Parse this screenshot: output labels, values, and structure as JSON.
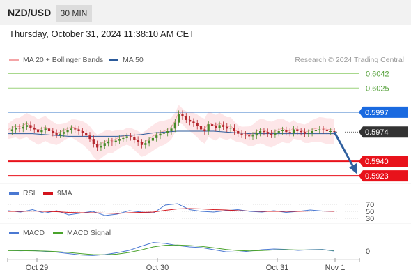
{
  "header": {
    "pair": "NZD/USD",
    "timeframe": "30 MIN",
    "timestamp": "Thursday, October 31, 2024 11:38:10 AM CET"
  },
  "legend": {
    "ma_bb": "MA 20 + Bollinger Bands",
    "ma50": "MA 50",
    "credit": "Research © 2024 Trading Central",
    "rsi": "RSI",
    "rsi_ma": "9MA",
    "macd": "MACD",
    "macd_signal": "MACD Signal"
  },
  "colors": {
    "ma20": "#f08080",
    "ma50": "#2b5a9a",
    "bb_fill": "#fde2e4",
    "candle_up": "#4a8a2a",
    "candle_down": "#b3262d",
    "resistance_green": "#9bd27b",
    "pivot_blue": "#3a78c9",
    "support_red": "#e8121b",
    "arrow": "#2f5f9e",
    "rsi": "#4a78d2",
    "rsi_ma": "#d3141c",
    "macd": "#4a78d2",
    "macd_signal": "#4aa32c"
  },
  "chart_data": [
    {
      "type": "candlestick",
      "title": "NZD/USD 30 MIN",
      "x_tick_labels": [
        "Oct 29",
        "Oct 30",
        "Oct 31",
        "Nov 1"
      ],
      "ylim": [
        0.5915,
        0.6052
      ],
      "key_levels": [
        {
          "label": "0.6042",
          "value": 0.6042,
          "kind": "resistance"
        },
        {
          "label": "0.6025",
          "value": 0.6025,
          "kind": "resistance"
        },
        {
          "label": "0.5997",
          "value": 0.5997,
          "kind": "pivot"
        },
        {
          "label": "0.5974",
          "value": 0.5974,
          "kind": "last_price"
        },
        {
          "label": "0.5940",
          "value": 0.594,
          "kind": "support"
        },
        {
          "label": "0.5923",
          "value": 0.5923,
          "kind": "support"
        }
      ],
      "close_series": [
        0.5975,
        0.5977,
        0.5979,
        0.5978,
        0.598,
        0.5982,
        0.5979,
        0.5977,
        0.5974,
        0.5976,
        0.5978,
        0.5975,
        0.5973,
        0.5971,
        0.5972,
        0.5974,
        0.5976,
        0.5978,
        0.5977,
        0.5975,
        0.5973,
        0.597,
        0.5966,
        0.596,
        0.5956,
        0.5958,
        0.5961,
        0.5963,
        0.5962,
        0.5964,
        0.5966,
        0.5967,
        0.5969,
        0.5968,
        0.5965,
        0.5962,
        0.5959,
        0.5961,
        0.5964,
        0.5967,
        0.597,
        0.5972,
        0.5973,
        0.5975,
        0.5978,
        0.5985,
        0.5995,
        0.5992,
        0.5988,
        0.5986,
        0.5984,
        0.5981,
        0.5977,
        0.5975,
        0.5983,
        0.5981,
        0.5979,
        0.5982,
        0.598,
        0.5978,
        0.5979,
        0.5975,
        0.5972,
        0.5971,
        0.597,
        0.5969,
        0.597,
        0.5973,
        0.5975,
        0.5974,
        0.5972,
        0.5971,
        0.5973,
        0.5975,
        0.5976,
        0.5974,
        0.5973,
        0.5977,
        0.5975,
        0.5974,
        0.5972,
        0.5973,
        0.5975,
        0.5976,
        0.5977,
        0.5976,
        0.5975,
        0.5975,
        0.5974
      ],
      "ma50": [
        0.5972,
        0.5972,
        0.5972,
        0.5971,
        0.597,
        0.5969,
        0.5969,
        0.5969,
        0.5969,
        0.5969,
        0.597,
        0.5971,
        0.5973,
        0.5974,
        0.5975,
        0.5975,
        0.5975,
        0.5975,
        0.5974,
        0.5973,
        0.5972,
        0.5972,
        0.5972,
        0.5972,
        0.5972,
        0.5972,
        0.5972,
        0.5972
      ]
    },
    {
      "type": "line",
      "name": "RSI",
      "ylim": [
        20,
        80
      ],
      "y_tick_labels": [
        "70",
        "50",
        "30"
      ],
      "series": [
        {
          "name": "RSI",
          "values": [
            52,
            48,
            55,
            45,
            52,
            40,
            45,
            50,
            38,
            42,
            52,
            48,
            45,
            68,
            72,
            55,
            50,
            48,
            52,
            55,
            50,
            48,
            52,
            47,
            50,
            54,
            51,
            50
          ]
        },
        {
          "name": "9MA",
          "values": [
            50,
            50,
            51,
            50,
            49,
            47,
            46,
            46,
            45,
            44,
            46,
            47,
            48,
            53,
            57,
            58,
            57,
            55,
            54,
            52,
            51,
            50,
            50,
            50,
            50,
            51,
            51,
            50
          ]
        }
      ]
    },
    {
      "type": "line",
      "name": "MACD",
      "ylim": [
        -1,
        1
      ],
      "y_tick_labels": [
        "0"
      ],
      "series": [
        {
          "name": "MACD",
          "values": [
            0.05,
            0.02,
            0.04,
            -0.02,
            -0.08,
            -0.18,
            -0.28,
            -0.32,
            -0.25,
            -0.12,
            0.05,
            0.35,
            0.62,
            0.55,
            0.4,
            0.3,
            0.25,
            0.1,
            -0.05,
            -0.08,
            0.0,
            0.1,
            0.15,
            0.12,
            0.05,
            0.1,
            0.12,
            0.0
          ]
        },
        {
          "name": "MACD Signal",
          "values": [
            0.03,
            0.03,
            0.02,
            0.0,
            -0.04,
            -0.1,
            -0.18,
            -0.25,
            -0.27,
            -0.22,
            -0.1,
            0.08,
            0.3,
            0.42,
            0.44,
            0.4,
            0.34,
            0.24,
            0.12,
            0.04,
            0.01,
            0.04,
            0.08,
            0.1,
            0.08,
            0.08,
            0.09,
            0.05
          ]
        }
      ]
    }
  ]
}
